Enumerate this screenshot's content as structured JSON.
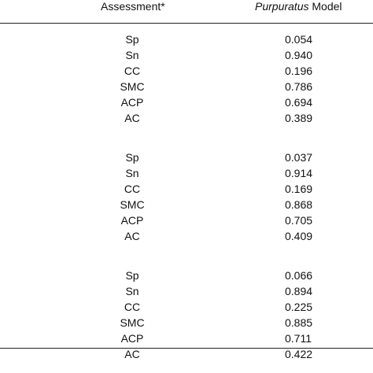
{
  "table": {
    "header": {
      "assessment": "Assessment*",
      "model_italic": "Purpuratus",
      "model_rest": " Model"
    },
    "groups": [
      {
        "rows": [
          {
            "label": "Sp",
            "value": "0.054"
          },
          {
            "label": "Sn",
            "value": "0.940"
          },
          {
            "label": "CC",
            "value": "0.196"
          },
          {
            "label": "SMC",
            "value": "0.786"
          },
          {
            "label": "ACP",
            "value": "0.694"
          },
          {
            "label": "AC",
            "value": "0.389"
          }
        ]
      },
      {
        "rows": [
          {
            "label": "Sp",
            "value": "0.037"
          },
          {
            "label": "Sn",
            "value": "0.914"
          },
          {
            "label": "CC",
            "value": "0.169"
          },
          {
            "label": "SMC",
            "value": "0.868"
          },
          {
            "label": "ACP",
            "value": "0.705"
          },
          {
            "label": "AC",
            "value": "0.409"
          }
        ]
      },
      {
        "rows": [
          {
            "label": "Sp",
            "value": "0.066"
          },
          {
            "label": "Sn",
            "value": "0.894"
          },
          {
            "label": "CC",
            "value": "0.225"
          },
          {
            "label": "SMC",
            "value": "0.885"
          },
          {
            "label": "ACP",
            "value": "0.711"
          },
          {
            "label": "AC",
            "value": "0.422"
          }
        ]
      }
    ]
  }
}
